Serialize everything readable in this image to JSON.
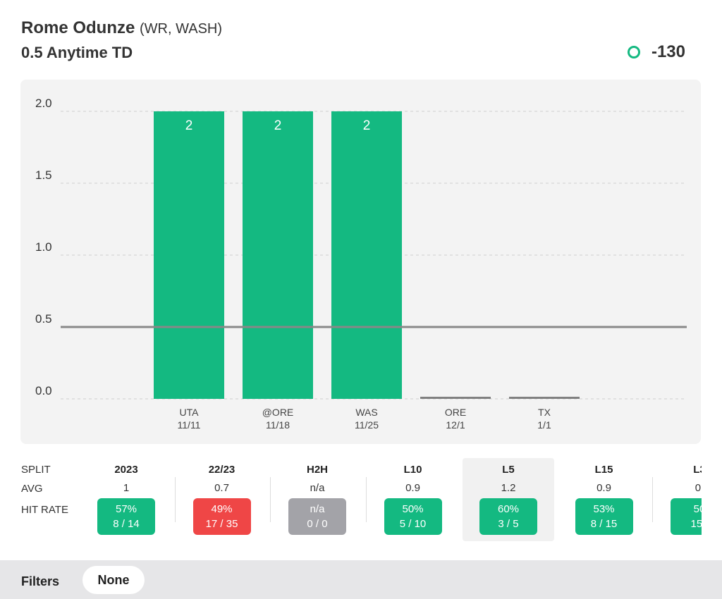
{
  "header": {
    "player_name": "Rome Odunze",
    "player_meta": "(WR, WASH)",
    "market": "0.5 Anytime TD",
    "odds": "-130",
    "accent": "#14b981"
  },
  "chart_data": {
    "type": "bar",
    "categories": [
      "UTA 11/11",
      "@ORE 11/18",
      "WAS 11/25",
      "ORE 12/1",
      "TX 1/1"
    ],
    "opponents": [
      "UTA",
      "@ORE",
      "WAS",
      "ORE",
      "TX"
    ],
    "dates": [
      "11/11",
      "11/18",
      "11/25",
      "12/1",
      "1/1"
    ],
    "values": [
      2,
      2,
      2,
      0,
      0
    ],
    "value_labels": [
      "2",
      "2",
      "2",
      "",
      ""
    ],
    "ylim": [
      0,
      2
    ],
    "yticks": [
      "0.0",
      "0.5",
      "1.0",
      "1.5",
      "2.0"
    ],
    "ytick_values": [
      0,
      0.5,
      1,
      1.5,
      2
    ],
    "line_value": 0.5,
    "grid": true,
    "bar_color": "#14b981",
    "zero_bar_color": "#808080"
  },
  "splits": {
    "row_labels": {
      "split": "SPLIT",
      "avg": "AVG",
      "hit_rate": "HIT RATE"
    },
    "columns": [
      {
        "name": "2023",
        "avg": "1",
        "pct": "57%",
        "frac": "8 / 14",
        "status": "green"
      },
      {
        "name": "22/23",
        "avg": "0.7",
        "pct": "49%",
        "frac": "17 / 35",
        "status": "red"
      },
      {
        "name": "H2H",
        "avg": "n/a",
        "pct": "n/a",
        "frac": "0 / 0",
        "status": "gray"
      },
      {
        "name": "L10",
        "avg": "0.9",
        "pct": "50%",
        "frac": "5 / 10",
        "status": "green"
      },
      {
        "name": "L5",
        "avg": "1.2",
        "pct": "60%",
        "frac": "3 / 5",
        "status": "green",
        "selected": true
      },
      {
        "name": "L15",
        "avg": "0.9",
        "pct": "53%",
        "frac": "8 / 15",
        "status": "green"
      },
      {
        "name": "L3",
        "avg": "0.",
        "pct": "50",
        "frac": "15 /",
        "status": "green"
      }
    ]
  },
  "filters": {
    "label": "Filters",
    "value": "None"
  }
}
